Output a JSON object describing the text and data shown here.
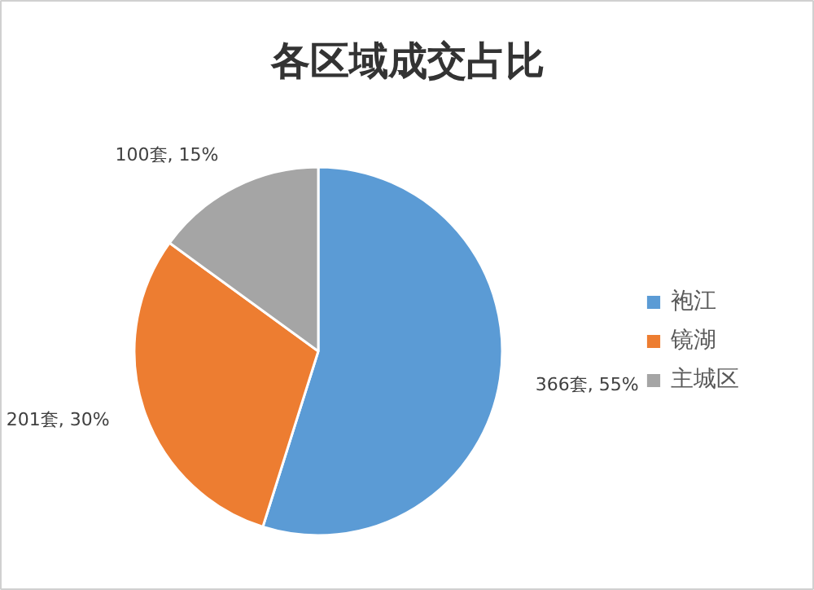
{
  "chart_data": {
    "type": "pie",
    "title": "各区域成交占比",
    "categories": [
      "袍江",
      "镜湖",
      "主城区"
    ],
    "values": [
      366,
      201,
      100
    ],
    "colors": [
      "#5b9bd5",
      "#ed7d31",
      "#a5a5a5"
    ],
    "value_labels": [
      "366套, 55%",
      "201套, 30%",
      "100套, 15%"
    ],
    "legend": "right"
  }
}
